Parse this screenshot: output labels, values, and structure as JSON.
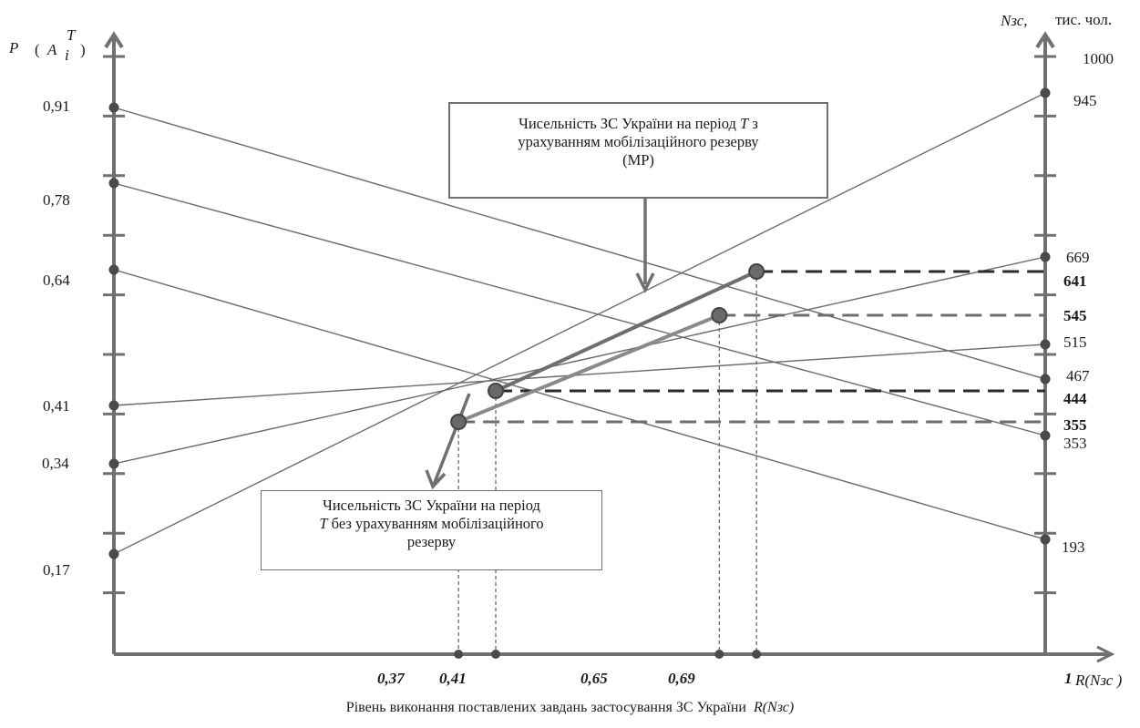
{
  "chart_data": {
    "type": "line",
    "left_axis_label": "P",
    "left_axis_label_formula": "A",
    "left_axis_label_sup": "T",
    "left_axis_label_sub": "i",
    "right_axis_label": "Nзс,",
    "right_axis_unit": "тис. чол.",
    "x_axis_label_end": "R(Nзс )",
    "x_caption": "Рівень виконання поставлених завдань застосування ЗС України",
    "x_caption_var": "R(Nзс)",
    "left_ticks": [
      "0,91",
      "0,78",
      "0,64",
      "0,41",
      "0,34",
      "0,17"
    ],
    "right_ticks": [
      "1000",
      "945",
      "669",
      "641",
      "545",
      "515",
      "467",
      "444",
      "355",
      "353",
      "193"
    ],
    "right_ticks_bold": [
      "641",
      "545",
      "444",
      "355"
    ],
    "x_ticks": [
      "0,37",
      "0,41",
      "0,65",
      "0,69",
      "1"
    ],
    "lines": [
      {
        "from": {
          "R": 0,
          "Nzc": 0.91
        },
        "to": {
          "R": 1,
          "Nzc": 467
        }
      },
      {
        "from": {
          "R": 0,
          "Nzc": 0.78
        },
        "to": {
          "R": 1,
          "Nzc": 353
        }
      },
      {
        "from": {
          "R": 0,
          "Nzc": 0.64
        },
        "to": {
          "R": 1,
          "Nzc": 193
        }
      },
      {
        "from": {
          "R": 0,
          "Nzc": 0.41
        },
        "to": {
          "R": 1,
          "Nzc": 515
        }
      },
      {
        "from": {
          "R": 0,
          "Nzc": 0.34
        },
        "to": {
          "R": 1,
          "Nzc": 669
        }
      },
      {
        "from": {
          "R": 0,
          "Nzc": 0.17
        },
        "to": {
          "R": 1,
          "Nzc": 945
        }
      }
    ],
    "series": [
      {
        "name": "Чисельність ЗС України на період T з урахуванням мобілізаційного резерву (МР)",
        "points": [
          {
            "R": 0.41,
            "Nzc": 444
          },
          {
            "R": 0.69,
            "Nzc": 641
          }
        ]
      },
      {
        "name": "Чисельність ЗС України на період T без урахуванням мобілізаційного резерву",
        "points": [
          {
            "R": 0.37,
            "Nzc": 355
          },
          {
            "R": 0.65,
            "Nzc": 545
          }
        ]
      }
    ]
  },
  "callouts": {
    "mr_line1": "Чисельність ЗС України на період",
    "mr_T": "T",
    "mr_line1b": "з",
    "mr_line2": "урахуванням мобілізаційного резерву",
    "mr_line3": "(МР)",
    "nomr_line1": "Чисельність ЗС України на період",
    "nomr_T": "T",
    "nomr_line2": "без урахуванням мобілізаційного",
    "nomr_line3": "резерву"
  }
}
